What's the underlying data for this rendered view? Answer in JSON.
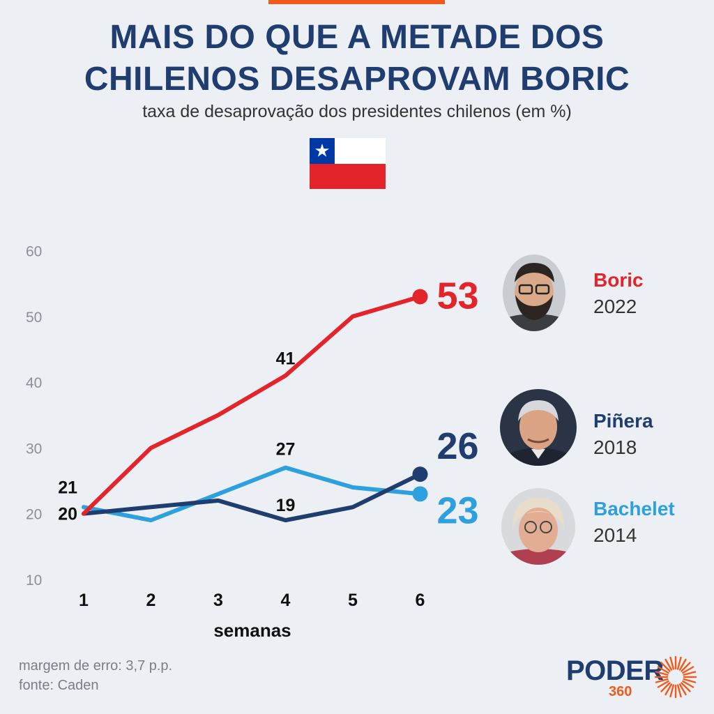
{
  "header": {
    "title_line1": "MAIS DO QUE A METADE DOS",
    "title_line2": "CHILENOS DESAPROVAM BORIC",
    "subtitle": "taxa de desaprovação dos presidentes chilenos (em %)"
  },
  "flag": {
    "icon": "chile-flag-icon",
    "blue": "#0039a6",
    "white": "#ffffff",
    "red": "#e3242b"
  },
  "chart_data": {
    "type": "line",
    "title": "taxa de desaprovação dos presidentes chilenos (em %)",
    "xlabel": "semanas",
    "ylabel": "",
    "x": [
      1,
      2,
      3,
      4,
      5,
      6
    ],
    "x_tick_labels": [
      "1",
      "2",
      "3",
      "4",
      "5",
      "6"
    ],
    "y_ticks": [
      10,
      20,
      30,
      40,
      50,
      60
    ],
    "y_tick_labels": [
      "10",
      "20",
      "30",
      "40",
      "50",
      "60"
    ],
    "ylim": [
      10,
      60
    ],
    "grid": false,
    "series": [
      {
        "name": "Boric",
        "year": "2022",
        "color": "#e3242b",
        "values": [
          20,
          30,
          35,
          41,
          50,
          53
        ],
        "end_label": "53",
        "point_labels": [
          {
            "index": 3,
            "text": "41"
          }
        ]
      },
      {
        "name": "Piñera",
        "year": "2018",
        "color": "#1f3d6e",
        "values": [
          20,
          21,
          22,
          19,
          21,
          26
        ],
        "end_label": "26",
        "point_labels": [
          {
            "index": 0,
            "text": "20"
          },
          {
            "index": 3,
            "text": "19"
          }
        ]
      },
      {
        "name": "Bachelet",
        "year": "2014",
        "color": "#2da0dd",
        "values": [
          21,
          19,
          23,
          27,
          24,
          23
        ],
        "end_label": "23",
        "point_labels": [
          {
            "index": 0,
            "text": "21"
          },
          {
            "index": 3,
            "text": "27"
          }
        ]
      }
    ]
  },
  "legend": {
    "boric": {
      "name": "Boric",
      "year": "2022",
      "color": "#e3242b",
      "photo": "boric-portrait"
    },
    "pinera": {
      "name": "Piñera",
      "year": "2018",
      "color": "#1f3d6e",
      "photo": "pinera-portrait"
    },
    "bachelet": {
      "name": "Bachelet",
      "year": "2014",
      "color": "#2da0dd",
      "photo": "bachelet-portrait"
    }
  },
  "footer": {
    "margin": "margem de erro: 3,7 p.p.",
    "source": "fonte: Caden"
  },
  "logo": {
    "text": "PODER",
    "number": "360",
    "text_color": "#1f3d6e",
    "accent": "#f05a1a"
  }
}
